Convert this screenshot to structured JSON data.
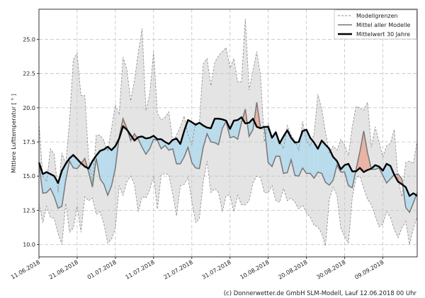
{
  "chart_data": {
    "type": "line",
    "title": "",
    "xlabel": "",
    "ylabel": "Mittlere Lufttemperatur [ ° ]",
    "ylim": [
      9.1,
      27.2
    ],
    "grid": true,
    "legend_position": "top-right",
    "yticks": [
      "10.0",
      "12.5",
      "15.0",
      "17.5",
      "20.0",
      "22.5",
      "25.0"
    ],
    "xticks": [
      "11.06.2018",
      "21.06.2018",
      "01.07.2018",
      "11.07.2018",
      "21.07.2018",
      "31.07.2018",
      "10.08.2018",
      "20.08.2018",
      "30.08.2018",
      "09.09.2018"
    ],
    "x": [
      "11.06.2018",
      "12.06.2018",
      "13.06.2018",
      "14.06.2018",
      "15.06.2018",
      "16.06.2018",
      "17.06.2018",
      "18.06.2018",
      "19.06.2018",
      "20.06.2018",
      "21.06.2018",
      "22.06.2018",
      "23.06.2018",
      "24.06.2018",
      "25.06.2018",
      "26.06.2018",
      "27.06.2018",
      "28.06.2018",
      "29.06.2018",
      "30.06.2018",
      "01.07.2018",
      "02.07.2018",
      "03.07.2018",
      "04.07.2018",
      "05.07.2018",
      "06.07.2018",
      "07.07.2018",
      "08.07.2018",
      "09.07.2018",
      "10.07.2018",
      "11.07.2018",
      "12.07.2018",
      "13.07.2018",
      "14.07.2018",
      "15.07.2018",
      "16.07.2018",
      "17.07.2018",
      "18.07.2018",
      "19.07.2018",
      "20.07.2018",
      "21.07.2018",
      "22.07.2018",
      "23.07.2018",
      "24.07.2018",
      "25.07.2018",
      "26.07.2018",
      "27.07.2018",
      "28.07.2018",
      "29.07.2018",
      "30.07.2018",
      "31.07.2018",
      "01.08.2018",
      "02.08.2018",
      "03.08.2018",
      "04.08.2018",
      "05.08.2018",
      "06.08.2018",
      "07.08.2018",
      "08.08.2018",
      "09.08.2018",
      "10.08.2018",
      "11.08.2018",
      "12.08.2018",
      "13.08.2018",
      "14.08.2018",
      "15.08.2018",
      "16.08.2018",
      "17.08.2018",
      "18.08.2018",
      "19.08.2018",
      "20.08.2018",
      "21.08.2018",
      "22.08.2018",
      "23.08.2018",
      "24.08.2018",
      "25.08.2018",
      "26.08.2018",
      "27.08.2018",
      "28.08.2018",
      "29.08.2018",
      "30.08.2018",
      "31.08.2018",
      "01.09.2018",
      "02.09.2018",
      "03.09.2018",
      "04.09.2018",
      "05.09.2018",
      "06.09.2018",
      "07.09.2018",
      "08.09.2018",
      "09.09.2018",
      "10.09.2018",
      "11.09.2018",
      "12.09.2018",
      "13.09.2018",
      "14.09.2018",
      "15.09.2018",
      "16.09.2018",
      "17.09.2018",
      "18.09.2018"
    ],
    "series": [
      {
        "name": "Modellgrenzen",
        "role": "upper",
        "color": "#888888",
        "values": [
          18.9,
          15.0,
          14.6,
          17.0,
          16.6,
          13.8,
          16.7,
          15.9,
          19.0,
          23.5,
          24.0,
          20.9,
          20.9,
          16.3,
          14.5,
          18.0,
          18.0,
          17.6,
          16.8,
          18.5,
          20.2,
          19.5,
          23.7,
          22.8,
          20.5,
          22.0,
          24.0,
          25.8,
          19.8,
          21.0,
          24.1,
          19.6,
          19.1,
          19.3,
          19.7,
          17.5,
          18.0,
          18.6,
          19.4,
          18.0,
          17.3,
          18.9,
          18.9,
          23.2,
          23.6,
          21.6,
          23.3,
          23.8,
          24.1,
          24.4,
          22.9,
          23.6,
          21.9,
          21.9,
          26.5,
          21.3,
          22.7,
          24.1,
          22.3,
          17.5,
          18.9,
          17.9,
          18.3,
          17.5,
          17.0,
          18.7,
          18.0,
          17.6,
          16.9,
          19.0,
          17.6,
          17.2,
          18.1,
          21.0,
          19.9,
          18.2,
          16.7,
          17.2,
          16.9,
          17.7,
          17.3,
          16.5,
          18.6,
          20.1,
          20.0,
          19.8,
          20.4,
          17.1,
          18.6,
          17.5,
          16.4,
          17.2,
          17.4,
          18.4,
          14.8,
          13.5,
          16.0,
          16.1,
          15.9,
          17.6
        ]
      },
      {
        "name": "Modellgrenzen",
        "role": "lower",
        "color": "#888888",
        "values": [
          13.0,
          11.6,
          12.8,
          12.0,
          11.9,
          10.8,
          10.0,
          13.0,
          10.9,
          11.2,
          12.8,
          10.9,
          13.5,
          13.2,
          13.4,
          12.2,
          12.4,
          11.5,
          10.1,
          10.4,
          11.2,
          14.3,
          13.6,
          14.6,
          15.0,
          14.4,
          12.4,
          13.5,
          13.4,
          14.0,
          15.0,
          12.6,
          15.1,
          15.2,
          15.1,
          13.7,
          12.1,
          14.3,
          14.4,
          14.9,
          13.2,
          11.6,
          11.9,
          14.6,
          16.1,
          13.8,
          14.1,
          13.8,
          12.4,
          13.6,
          13.6,
          12.4,
          13.6,
          12.9,
          12.9,
          13.2,
          14.5,
          15.0,
          14.9,
          13.8,
          13.8,
          14.3,
          13.2,
          13.1,
          14.1,
          13.2,
          13.4,
          13.1,
          12.6,
          12.9,
          12.3,
          12.0,
          11.4,
          11.3,
          10.8,
          9.9,
          13.3,
          14.2,
          13.6,
          11.2,
          10.6,
          10.1,
          13.4,
          14.9,
          15.0,
          14.1,
          13.3,
          12.9,
          12.1,
          11.3,
          11.5,
          12.4,
          12.0,
          11.1,
          10.5,
          11.2,
          11.7,
          10.0,
          11.2,
          12.0
        ]
      },
      {
        "name": "Mittel aller Modelle",
        "color": "#777777",
        "values": [
          15.9,
          13.75,
          13.8,
          14.1,
          13.5,
          12.65,
          12.8,
          14.7,
          16.1,
          15.6,
          15.55,
          15.9,
          16.3,
          15.3,
          14.2,
          16.3,
          14.8,
          14.4,
          13.6,
          14.3,
          15.6,
          17.9,
          19.2,
          18.5,
          17.6,
          18.1,
          17.7,
          17.1,
          16.6,
          17.0,
          17.7,
          17.6,
          17.0,
          17.25,
          16.9,
          17.0,
          15.9,
          15.9,
          16.4,
          17.1,
          16.0,
          15.6,
          15.55,
          17.1,
          18.1,
          17.5,
          17.45,
          17.3,
          18.5,
          19.0,
          17.8,
          17.9,
          17.7,
          18.9,
          19.9,
          17.9,
          18.4,
          20.4,
          18.5,
          18.6,
          16.0,
          15.7,
          16.45,
          16.45,
          15.2,
          15.25,
          16.2,
          15.05,
          15.0,
          15.6,
          15.2,
          15.2,
          14.85,
          15.3,
          15.2,
          14.55,
          14.35,
          14.7,
          15.8,
          15.3,
          15.3,
          14.3,
          14.15,
          15.5,
          16.8,
          18.3,
          16.7,
          15.5,
          15.5,
          15.6,
          15.05,
          14.5,
          14.8,
          15.1,
          15.15,
          14.8,
          12.7,
          12.35,
          13.05,
          13.8
        ]
      },
      {
        "name": "Mittelwert 30 Jahre",
        "color": "#000000",
        "values": [
          16.0,
          15.15,
          15.3,
          15.15,
          15.0,
          14.5,
          15.4,
          15.9,
          16.3,
          16.55,
          16.25,
          15.95,
          15.7,
          15.55,
          16.1,
          16.5,
          16.85,
          16.95,
          17.15,
          16.9,
          17.2,
          17.75,
          18.65,
          18.4,
          18.0,
          17.6,
          17.85,
          17.9,
          17.75,
          17.8,
          17.95,
          17.7,
          17.7,
          17.5,
          17.35,
          17.65,
          17.75,
          17.35,
          18.3,
          19.1,
          18.95,
          18.75,
          18.9,
          18.7,
          18.55,
          18.5,
          19.2,
          19.2,
          19.15,
          19.05,
          18.45,
          19.05,
          19.1,
          19.3,
          18.85,
          18.9,
          19.2,
          18.6,
          18.5,
          18.6,
          18.6,
          17.8,
          18.2,
          17.4,
          17.9,
          18.35,
          17.8,
          17.45,
          17.5,
          18.3,
          18.4,
          17.8,
          17.45,
          17.0,
          17.6,
          17.3,
          17.0,
          16.4,
          16.1,
          15.5,
          15.8,
          15.9,
          15.35,
          15.35,
          15.6,
          15.3,
          15.45,
          15.55,
          15.8,
          15.7,
          15.4,
          15.9,
          15.75,
          15.1,
          14.6,
          14.4,
          14.2,
          13.55,
          13.75,
          13.55
        ]
      }
    ],
    "colors": {
      "band": "#e4e4e4",
      "below_normal": "#b9dcec",
      "above_normal": "#e9b3a5"
    },
    "legend": [
      "Modellgrenzen",
      "Mittel aller Modelle",
      "Mittelwert 30 Jahre"
    ],
    "footer": "(c) Donnerwetter.de GmbH SLM-Modell, Lauf 12.06.2018 00 Uhr"
  }
}
